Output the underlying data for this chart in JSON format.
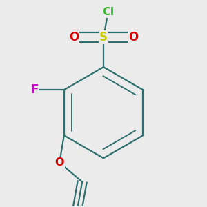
{
  "background_color": "#ebebeb",
  "bond_color": "#2d6e6e",
  "bond_lw": 1.6,
  "atom_labels": {
    "Cl": {
      "text": "Cl",
      "color": "#33bb33",
      "fontsize": 11.5,
      "fontweight": "bold"
    },
    "S": {
      "text": "S",
      "color": "#cccc00",
      "fontsize": 12,
      "fontweight": "bold"
    },
    "O1": {
      "text": "O",
      "color": "#dd0000",
      "fontsize": 12,
      "fontweight": "bold"
    },
    "O2": {
      "text": "O",
      "color": "#dd0000",
      "fontsize": 12,
      "fontweight": "bold"
    },
    "F": {
      "text": "F",
      "color": "#cc00cc",
      "fontsize": 12,
      "fontweight": "bold"
    },
    "O3": {
      "text": "O",
      "color": "#dd0000",
      "fontsize": 11.5,
      "fontweight": "bold"
    }
  }
}
